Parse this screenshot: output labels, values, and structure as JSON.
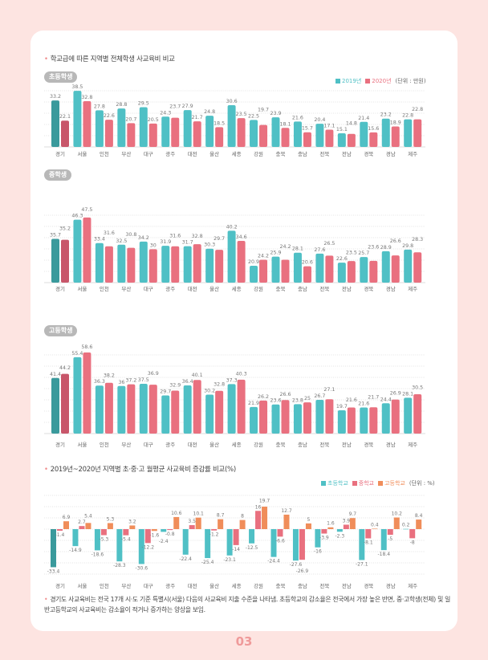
{
  "section1_title": "학교급에 따른 지역별 전체학생 사교육비 비교",
  "section2_title": "2019년~2020년 지역별 초·중·고 월평균 사교육비 증감률 비교(%)",
  "legend1": {
    "items": [
      "2019년",
      "2020년"
    ],
    "unit": "(단위 : 만원)"
  },
  "legend2": {
    "items": [
      "초등학교",
      "중학교",
      "고등학교"
    ],
    "unit": "(단위 : %)"
  },
  "note": "경기도 사교육비는 전국 17개 시·도 기준 특별시(서울) 다음의 사교육비 지출 수준을 나타냄. 초등학교의 감소율은 전국에서 가장 높은 반면, 중·고학생(전체) 및 일반고등학교의 사교육비는 감소율이 적거나 증가하는 양상을 보임.",
  "page_number": "03",
  "colors": {
    "y2019": "#4fc0c5",
    "y2020": "#e9707f",
    "y2019_highlight": "#3a9a9c",
    "y2020_highlight": "#c8566a",
    "high": "#f08d5a",
    "background": "#fde4e1"
  },
  "chart_data": [
    {
      "type": "bar",
      "title": "초등학생",
      "categories": [
        "경기",
        "서울",
        "인천",
        "부산",
        "대구",
        "광주",
        "대전",
        "울산",
        "세종",
        "강원",
        "충북",
        "충남",
        "전북",
        "전남",
        "경북",
        "경남",
        "제주"
      ],
      "series": [
        {
          "name": "2019년",
          "values": [
            33.2,
            38.5,
            27.8,
            28.8,
            29.5,
            24.3,
            27.9,
            24.8,
            30.6,
            22.5,
            23.9,
            21.6,
            20.4,
            15.1,
            21.4,
            23.2,
            22.8
          ]
        },
        {
          "name": "2020년",
          "values": [
            22.1,
            32.8,
            22.6,
            20.7,
            20.5,
            23.7,
            21.7,
            18.5,
            23.5,
            19.7,
            18.1,
            15.7,
            17.1,
            14.8,
            15.6,
            18.9,
            22.8
          ]
        }
      ],
      "ylabel": "(단위 : 만원)",
      "grid": true,
      "legend": "top-right"
    },
    {
      "type": "bar",
      "title": "중학생",
      "categories": [
        "경기",
        "서울",
        "인천",
        "부산",
        "대구",
        "광주",
        "대전",
        "울산",
        "세종",
        "강원",
        "충북",
        "충남",
        "전북",
        "전남",
        "경북",
        "경남",
        "제주"
      ],
      "series": [
        {
          "name": "2019년",
          "values": [
            35.7,
            46.3,
            33.4,
            32.5,
            34.2,
            31.9,
            31.7,
            30.3,
            40.2,
            20.9,
            25.9,
            28.1,
            27.6,
            22.6,
            25.7,
            28.9,
            29.8
          ]
        },
        {
          "name": "2020년",
          "values": [
            35.2,
            47.5,
            31.6,
            30.8,
            30,
            31.6,
            32.8,
            29.7,
            34.6,
            24.2,
            24.2,
            20.6,
            26.5,
            23.5,
            23.6,
            26.6,
            28.3
          ]
        }
      ],
      "grid": true
    },
    {
      "type": "bar",
      "title": "고등학생",
      "categories": [
        "경기",
        "서울",
        "인천",
        "부산",
        "대구",
        "광주",
        "대전",
        "울산",
        "세종",
        "강원",
        "충북",
        "충남",
        "전북",
        "전남",
        "경북",
        "경남",
        "제주"
      ],
      "series": [
        {
          "name": "2019년",
          "values": [
            41.4,
            55.4,
            36.3,
            36,
            37.5,
            29.7,
            36.4,
            30.2,
            37.3,
            21.9,
            23.6,
            23.8,
            26.7,
            19.7,
            21.6,
            24.4,
            28.1
          ]
        },
        {
          "name": "2020년",
          "values": [
            44.2,
            58.6,
            38.2,
            37.2,
            36.9,
            32.9,
            40.1,
            32.8,
            40.3,
            26.2,
            26.6,
            25,
            27.1,
            21.6,
            21.7,
            26.9,
            30.5
          ]
        }
      ],
      "grid": true
    },
    {
      "type": "bar",
      "categories": [
        "경기",
        "서울",
        "인천",
        "부산",
        "대구",
        "광주",
        "대전",
        "울산",
        "세종",
        "강원",
        "충북",
        "충남",
        "전북",
        "전남",
        "경북",
        "경남",
        "제주"
      ],
      "series": [
        {
          "name": "초등학교",
          "values": [
            -33.4,
            -14.9,
            -18.6,
            -28.3,
            -30.6,
            -2.4,
            -22.4,
            -25.4,
            -23.1,
            -12.5,
            -24.4,
            -27.6,
            -16,
            -2.3,
            -27.1,
            -18.4,
            0.2
          ]
        },
        {
          "name": "중학교",
          "values": [
            -1.4,
            2.7,
            -5.3,
            -5.4,
            -12.2,
            -0.8,
            3.5,
            -1.2,
            -14,
            16,
            -6.6,
            -26.9,
            -3.9,
            3.9,
            -8.1,
            -5,
            -8
          ]
        },
        {
          "name": "고등학교",
          "values": [
            6.9,
            5.4,
            5.3,
            3.2,
            -1.6,
            10.6,
            10.1,
            8.7,
            8,
            19.7,
            12.7,
            5,
            1.6,
            9.7,
            0.4,
            10.2,
            8.4
          ]
        }
      ],
      "ylabel": "(단위 : %)",
      "grid": true,
      "legend": "top-right"
    }
  ]
}
